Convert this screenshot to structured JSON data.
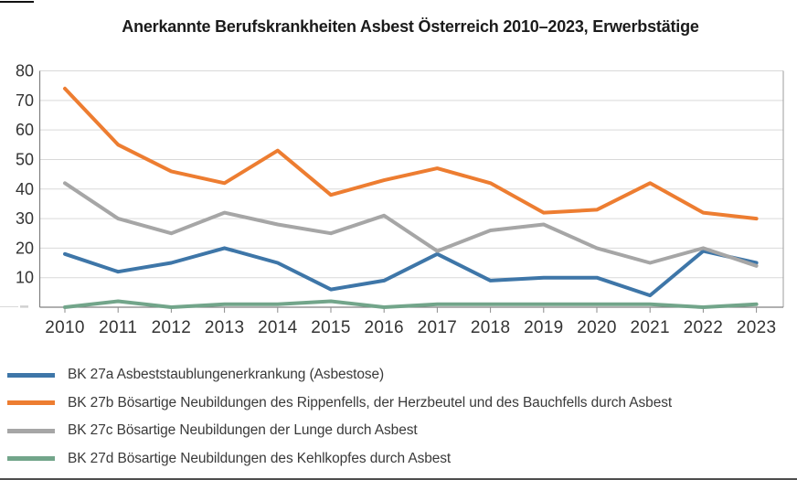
{
  "title": "Anerkannte Berufskrankheiten Asbest Österreich 2010–2023, Erwerbstätige",
  "chart_data": {
    "type": "line",
    "x": [
      2010,
      2011,
      2012,
      2013,
      2014,
      2015,
      2016,
      2017,
      2018,
      2019,
      2020,
      2021,
      2022,
      2023
    ],
    "series": [
      {
        "name": "BK 27a",
        "label": "BK 27a Asbeststaublungenerkrankung (Asbestose)",
        "color": "#3E76A8",
        "values": [
          18,
          12,
          15,
          20,
          15,
          6,
          9,
          18,
          9,
          10,
          10,
          4,
          19,
          15
        ]
      },
      {
        "name": "BK 27b",
        "label": "BK 27b Bösartige Neubildungen des Rippenfells, der Herzbeutel und des Bauchfells durch Asbest",
        "color": "#ED7D31",
        "values": [
          74,
          55,
          46,
          42,
          53,
          38,
          43,
          47,
          42,
          32,
          33,
          42,
          32,
          30
        ]
      },
      {
        "name": "BK 27c",
        "label": "BK 27c Bösartige Neubildungen der Lunge durch Asbest",
        "color": "#A6A6A6",
        "values": [
          42,
          30,
          25,
          32,
          28,
          25,
          31,
          19,
          26,
          28,
          20,
          15,
          20,
          14
        ]
      },
      {
        "name": "BK 27d",
        "label": "BK 27d Bösartige Neubildungen des Kehlkopfes durch Asbest",
        "color": "#72A58A",
        "values": [
          0,
          2,
          0,
          1,
          1,
          2,
          0,
          1,
          1,
          1,
          1,
          1,
          0,
          1
        ]
      }
    ],
    "ylim": [
      0,
      80
    ],
    "ytick_step": 10,
    "ytick_labels": [
      "10",
      "20",
      "30",
      "40",
      "50",
      "60",
      "70",
      "80"
    ],
    "grid": true,
    "legend_position": "bottom",
    "colors": {
      "gridline": "#d9d9d9",
      "axis": "#808080",
      "plot_border_right": "#9e9e9e",
      "tick": "#8c8c8c",
      "axis_label": "#333333"
    }
  }
}
